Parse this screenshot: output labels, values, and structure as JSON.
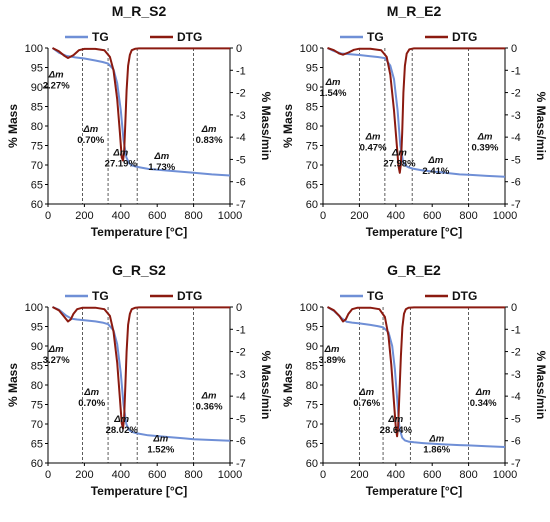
{
  "colors": {
    "tg": "#6f8fd6",
    "dtg": "#8b1a10",
    "axis": "#000000",
    "dash": "#333333"
  },
  "chart_data": [
    {
      "type": "line",
      "title": "M_R_S2",
      "xlabel": "Temperature [°C]",
      "ylabel": "% Mass",
      "y2label": "% Mass/min",
      "xlim": [
        0,
        1000
      ],
      "ylim": [
        60,
        100
      ],
      "y2lim": [
        -7,
        0
      ],
      "xticks": [
        "0",
        "200",
        "400",
        "600",
        "800",
        "1000"
      ],
      "yticks": [
        "60",
        "65",
        "70",
        "75",
        "80",
        "85",
        "90",
        "95",
        "100"
      ],
      "y2ticks": [
        "0",
        "-1",
        "-2",
        "-3",
        "-4",
        "-5",
        "-6",
        "-7"
      ],
      "legend": [
        "TG",
        "DTG"
      ],
      "grid": false,
      "step_dividers": [
        190,
        330,
        490,
        800
      ],
      "series": [
        {
          "name": "TG",
          "axis": "left",
          "x": [
            25,
            60,
            100,
            150,
            200,
            260,
            300,
            330,
            360,
            380,
            400,
            415,
            430,
            445,
            460,
            490,
            550,
            650,
            750,
            800,
            900,
            1000
          ],
          "y": [
            100,
            98.8,
            98.0,
            97.6,
            97.3,
            96.8,
            96.4,
            96.0,
            94.5,
            91.0,
            84.0,
            76.5,
            72.0,
            70.5,
            69.9,
            69.5,
            69.0,
            68.6,
            68.2,
            68.0,
            67.6,
            67.3
          ]
        },
        {
          "name": "DTG",
          "axis": "right",
          "x": [
            25,
            60,
            90,
            110,
            140,
            170,
            200,
            260,
            310,
            340,
            360,
            380,
            395,
            405,
            412,
            418,
            425,
            432,
            440,
            450,
            460,
            480,
            500,
            600,
            800,
            1000
          ],
          "y": [
            0,
            -0.15,
            -0.35,
            -0.45,
            -0.32,
            -0.1,
            -0.04,
            -0.04,
            -0.1,
            -0.4,
            -1.0,
            -2.3,
            -3.8,
            -4.9,
            -5.05,
            -4.7,
            -3.4,
            -1.9,
            -0.8,
            -0.3,
            -0.1,
            -0.03,
            -0.02,
            -0.02,
            -0.02,
            -0.02
          ]
        }
      ],
      "annotations": [
        {
          "label": "Δm",
          "value": "2.27%",
          "x": 45,
          "y": 92.5
        },
        {
          "label": "Δm",
          "value": "0.70%",
          "x": 235,
          "y": 78.5
        },
        {
          "label": "Δm",
          "value": "27.19%",
          "x": 400,
          "y": 72.5
        },
        {
          "label": "Δm",
          "value": "1.73%",
          "x": 625,
          "y": 71.5
        },
        {
          "label": "Δm",
          "value": "0.83%",
          "x": 885,
          "y": 78.5
        }
      ]
    },
    {
      "type": "line",
      "title": "M_R_E2",
      "xlabel": "Temperature [°C]",
      "ylabel": "% Mass",
      "y2label": "% Mass/min",
      "xlim": [
        0,
        1000
      ],
      "ylim": [
        60,
        100
      ],
      "y2lim": [
        -7,
        0
      ],
      "xticks": [
        "0",
        "200",
        "400",
        "600",
        "800",
        "1000"
      ],
      "yticks": [
        "60",
        "65",
        "70",
        "75",
        "80",
        "85",
        "90",
        "95",
        "100"
      ],
      "y2ticks": [
        "0",
        "-1",
        "-2",
        "-3",
        "-4",
        "-5",
        "-6",
        "-7"
      ],
      "legend": [
        "TG",
        "DTG"
      ],
      "grid": false,
      "step_dividers": [
        200,
        340,
        490,
        800
      ],
      "series": [
        {
          "name": "TG",
          "axis": "left",
          "x": [
            25,
            60,
            100,
            150,
            200,
            260,
            300,
            340,
            370,
            390,
            410,
            425,
            440,
            455,
            470,
            500,
            550,
            650,
            750,
            800,
            900,
            1000
          ],
          "y": [
            100,
            99.2,
            98.6,
            98.4,
            98.2,
            97.9,
            97.7,
            97.4,
            95.5,
            92.0,
            84.0,
            75.0,
            70.8,
            69.8,
            69.4,
            69.0,
            68.6,
            68.1,
            67.6,
            67.5,
            67.2,
            67.0
          ]
        },
        {
          "name": "DTG",
          "axis": "right",
          "x": [
            25,
            60,
            90,
            110,
            140,
            170,
            200,
            260,
            320,
            350,
            370,
            390,
            405,
            415,
            422,
            428,
            435,
            442,
            450,
            460,
            475,
            500,
            600,
            800,
            1000
          ],
          "y": [
            0,
            -0.1,
            -0.25,
            -0.3,
            -0.2,
            -0.08,
            -0.03,
            -0.03,
            -0.1,
            -0.4,
            -1.2,
            -2.8,
            -4.3,
            -5.3,
            -5.6,
            -5.2,
            -3.8,
            -2.0,
            -0.8,
            -0.25,
            -0.06,
            -0.02,
            -0.02,
            -0.02,
            -0.02
          ]
        }
      ],
      "annotations": [
        {
          "label": "Δm",
          "value": "1.54%",
          "x": 55,
          "y": 90.5
        },
        {
          "label": "Δm",
          "value": "0.47%",
          "x": 275,
          "y": 76.5
        },
        {
          "label": "Δm",
          "value": "27.98%",
          "x": 420,
          "y": 72.5
        },
        {
          "label": "Δm",
          "value": "2.41%",
          "x": 620,
          "y": 70.5
        },
        {
          "label": "Δm",
          "value": "0.39%",
          "x": 890,
          "y": 76.5
        }
      ]
    },
    {
      "type": "line",
      "title": "G_R_S2",
      "xlabel": "Temperature [°C]",
      "ylabel": "% Mass",
      "y2label": "% Mass/min",
      "xlim": [
        0,
        1000
      ],
      "ylim": [
        60,
        100
      ],
      "y2lim": [
        -7,
        0
      ],
      "xticks": [
        "0",
        "200",
        "400",
        "600",
        "800",
        "1000"
      ],
      "yticks": [
        "60",
        "65",
        "70",
        "75",
        "80",
        "85",
        "90",
        "95",
        "100"
      ],
      "y2ticks": [
        "0",
        "-1",
        "-2",
        "-3",
        "-4",
        "-5",
        "-6",
        "-7"
      ],
      "legend": [
        "TG",
        "DTG"
      ],
      "grid": false,
      "step_dividers": [
        190,
        330,
        490,
        800
      ],
      "series": [
        {
          "name": "TG",
          "axis": "left",
          "x": [
            25,
            60,
            100,
            130,
            160,
            200,
            260,
            300,
            330,
            360,
            380,
            400,
            415,
            430,
            445,
            460,
            490,
            550,
            650,
            750,
            800,
            900,
            1000
          ],
          "y": [
            100,
            99.3,
            97.8,
            97.0,
            96.8,
            96.6,
            96.3,
            96.0,
            95.6,
            94.0,
            90.5,
            83.0,
            75.0,
            70.0,
            68.5,
            68.0,
            67.6,
            67.1,
            66.7,
            66.3,
            66.1,
            65.9,
            65.7
          ]
        },
        {
          "name": "DTG",
          "axis": "right",
          "x": [
            25,
            60,
            90,
            110,
            125,
            140,
            160,
            190,
            260,
            310,
            340,
            360,
            380,
            395,
            405,
            412,
            418,
            425,
            432,
            440,
            450,
            460,
            480,
            500,
            600,
            800,
            1000
          ],
          "y": [
            0,
            -0.15,
            -0.45,
            -0.65,
            -0.55,
            -0.3,
            -0.1,
            -0.03,
            -0.03,
            -0.1,
            -0.4,
            -1.1,
            -2.5,
            -4.1,
            -5.2,
            -5.45,
            -5.0,
            -3.6,
            -2.0,
            -0.8,
            -0.3,
            -0.1,
            -0.03,
            -0.02,
            -0.02,
            -0.02,
            -0.02
          ]
        }
      ],
      "annotations": [
        {
          "label": "Δm",
          "value": "3.27%",
          "x": 45,
          "y": 88.5
        },
        {
          "label": "Δm",
          "value": "0.70%",
          "x": 240,
          "y": 77.5
        },
        {
          "label": "Δm",
          "value": "28.02%",
          "x": 405,
          "y": 70.5
        },
        {
          "label": "Δm",
          "value": "1.52%",
          "x": 620,
          "y": 65.5
        },
        {
          "label": "Δm",
          "value": "0.36%",
          "x": 885,
          "y": 76.5
        }
      ]
    },
    {
      "type": "line",
      "title": "G_R_E2",
      "xlabel": "Temperature [°C]",
      "ylabel": "% Mass",
      "y2label": "% Mass/min",
      "xlim": [
        0,
        1000
      ],
      "ylim": [
        60,
        100
      ],
      "y2lim": [
        -7,
        0
      ],
      "xticks": [
        "0",
        "200",
        "400",
        "600",
        "800",
        "1000"
      ],
      "yticks": [
        "60",
        "65",
        "70",
        "75",
        "80",
        "85",
        "90",
        "95",
        "100"
      ],
      "y2ticks": [
        "0",
        "-1",
        "-2",
        "-3",
        "-4",
        "-5",
        "-6",
        "-7"
      ],
      "legend": [
        "TG",
        "DTG"
      ],
      "grid": false,
      "step_dividers": [
        200,
        330,
        480,
        800
      ],
      "series": [
        {
          "name": "TG",
          "axis": "left",
          "x": [
            25,
            60,
            100,
            130,
            160,
            200,
            260,
            300,
            330,
            360,
            380,
            395,
            410,
            420,
            435,
            450,
            470,
            500,
            550,
            650,
            750,
            800,
            900,
            1000
          ],
          "y": [
            100,
            99.0,
            97.2,
            96.2,
            96.0,
            95.8,
            95.4,
            95.1,
            94.8,
            93.5,
            90.0,
            84.0,
            75.0,
            69.0,
            66.5,
            65.8,
            65.5,
            65.3,
            65.1,
            64.8,
            64.6,
            64.5,
            64.3,
            64.1
          ]
        },
        {
          "name": "DTG",
          "axis": "right",
          "x": [
            25,
            60,
            90,
            110,
            125,
            140,
            160,
            190,
            260,
            310,
            340,
            360,
            375,
            390,
            400,
            407,
            413,
            420,
            428,
            436,
            445,
            455,
            470,
            500,
            600,
            800,
            1000
          ],
          "y": [
            0,
            -0.15,
            -0.4,
            -0.65,
            -0.55,
            -0.3,
            -0.1,
            -0.03,
            -0.03,
            -0.1,
            -0.45,
            -1.3,
            -2.6,
            -4.3,
            -5.4,
            -5.8,
            -5.3,
            -3.9,
            -2.2,
            -0.9,
            -0.3,
            -0.1,
            -0.03,
            -0.02,
            -0.02,
            -0.02,
            -0.02
          ]
        }
      ],
      "annotations": [
        {
          "label": "Δm",
          "value": "3.89%",
          "x": 50,
          "y": 88.5
        },
        {
          "label": "Δm",
          "value": "0.76%",
          "x": 240,
          "y": 77.5
        },
        {
          "label": "Δm",
          "value": "28.64%",
          "x": 400,
          "y": 70.5
        },
        {
          "label": "Δm",
          "value": "1.86%",
          "x": 625,
          "y": 65.5
        },
        {
          "label": "Δm",
          "value": "0.34%",
          "x": 880,
          "y": 77.5
        }
      ]
    }
  ]
}
